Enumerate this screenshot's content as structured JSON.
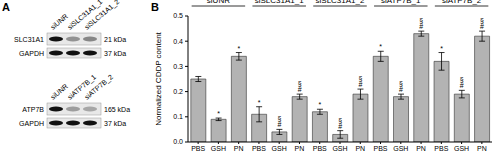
{
  "panel_a": {
    "panel_label": "A",
    "blots": [
      {
        "lanes": [
          "siUNR",
          "siSLC31A1_1",
          "siSLC31A1_2"
        ],
        "rows": [
          {
            "protein": "SLC31A1",
            "size": "21 kDa"
          },
          {
            "protein": "GAPDH",
            "size": "37 kDa"
          }
        ]
      },
      {
        "lanes": [
          "siUNR",
          "siATP7B_1",
          "siATP7B_2"
        ],
        "rows": [
          {
            "protein": "ATP7B",
            "size": "165 kDa"
          },
          {
            "protein": "GAPDH",
            "size": "37 kDa"
          }
        ]
      }
    ]
  },
  "chart_data": {
    "type": "bar",
    "panel_label": "B",
    "y_label": "Normalized CDDP content",
    "categories": [
      "PBS",
      "GSH",
      "PN"
    ],
    "color": "#b3b3b3",
    "ylim": [
      0,
      0.5
    ],
    "yticks": [
      {
        "value": 0,
        "label": "0.0"
      },
      {
        "value": 0.1,
        "label": "0.1"
      },
      {
        "value": 0.2,
        "label": "0.2"
      },
      {
        "value": 0.3,
        "label": "0.3"
      },
      {
        "value": 0.4,
        "label": "0.4"
      },
      {
        "value": 0.5,
        "label": "0.5"
      }
    ],
    "groups": [
      {
        "name": "siUNR",
        "values": [
          0.25,
          0.09,
          0.34
        ],
        "errors": [
          0.01,
          0.005,
          0.015
        ],
        "annotations": [
          [],
          [
            "*"
          ],
          [
            "*"
          ]
        ]
      },
      {
        "name": "siSLC31A1_1",
        "values": [
          0.11,
          0.04,
          0.18
        ],
        "errors": [
          0.03,
          0.01,
          0.01
        ],
        "annotations": [
          [
            "*"
          ],
          [
            "§",
            "#"
          ],
          [
            "§",
            "#"
          ]
        ]
      },
      {
        "name": "siSLC31A1_2",
        "values": [
          0.12,
          0.03,
          0.19
        ],
        "errors": [
          0.01,
          0.015,
          0.02
        ],
        "annotations": [
          [
            "*"
          ],
          [
            "§",
            "#"
          ],
          [
            "§",
            "#"
          ]
        ]
      },
      {
        "name": "siATP7B_1",
        "values": [
          0.34,
          0.18,
          0.43
        ],
        "errors": [
          0.02,
          0.01,
          0.01
        ],
        "annotations": [
          [
            "*"
          ],
          [
            "§",
            "#"
          ],
          [
            "§",
            "#"
          ]
        ]
      },
      {
        "name": "siATP7B_2",
        "values": [
          0.32,
          0.19,
          0.42
        ],
        "errors": [
          0.035,
          0.015,
          0.02
        ],
        "annotations": [
          [
            "*"
          ],
          [
            "§",
            "#"
          ],
          [
            "§",
            "#"
          ]
        ]
      }
    ]
  }
}
